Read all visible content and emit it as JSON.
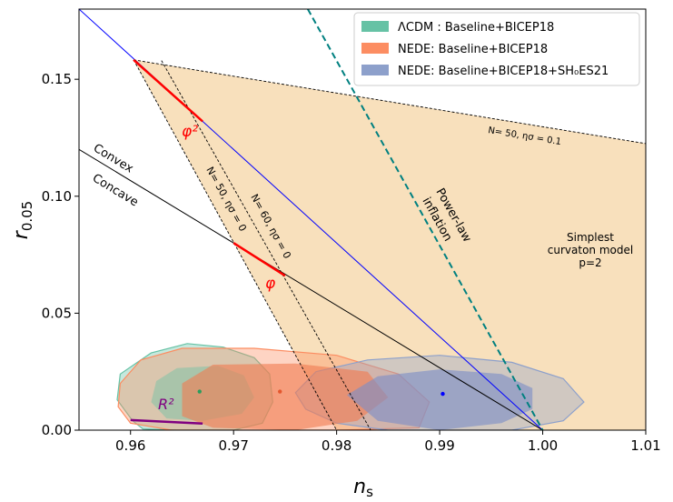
{
  "chart_data": {
    "type": "scatter",
    "xlabel": "n_s",
    "ylabel": "r_0.05",
    "xlim": [
      0.955,
      1.01
    ],
    "ylim": [
      0.0,
      0.18
    ],
    "x_ticks": [
      "0.96",
      "0.97",
      "0.98",
      "0.99",
      "1.00",
      "1.01"
    ],
    "y_ticks": [
      "0.00",
      "0.05",
      "0.10",
      "0.15"
    ],
    "legend_position": "top-right",
    "legend": [
      {
        "label": "ΛCDM : Baseline+BICEP18",
        "color": "#66c2a5"
      },
      {
        "label": "NEDE: Baseline+BICEP18",
        "color": "#fc8d62"
      },
      {
        "label": "NEDE: Baseline+BICEP18+SH₀ES21",
        "color": "#8da0cb"
      }
    ],
    "series": [
      {
        "name": "ΛCDM : Baseline+BICEP18",
        "color": "#66c2a5",
        "best_fit": [
          0.9667,
          0.0165
        ],
        "contour_95": [
          [
            0.9602,
            0.004
          ],
          [
            0.9612,
            0.0005
          ],
          [
            0.9645,
            0.0
          ],
          [
            0.97,
            0.0
          ],
          [
            0.9728,
            0.003
          ],
          [
            0.9738,
            0.012
          ],
          [
            0.9735,
            0.024
          ],
          [
            0.972,
            0.031
          ],
          [
            0.969,
            0.0355
          ],
          [
            0.9655,
            0.037
          ],
          [
            0.962,
            0.033
          ],
          [
            0.959,
            0.024
          ],
          [
            0.9587,
            0.013
          ]
        ],
        "contour_68": [
          [
            0.9635,
            0.005
          ],
          [
            0.967,
            0.004
          ],
          [
            0.9708,
            0.007
          ],
          [
            0.972,
            0.014
          ],
          [
            0.971,
            0.0235
          ],
          [
            0.9685,
            0.0275
          ],
          [
            0.9645,
            0.0265
          ],
          [
            0.9625,
            0.021
          ],
          [
            0.962,
            0.012
          ]
        ]
      },
      {
        "name": "NEDE: Baseline+BICEP18",
        "color": "#fc8d62",
        "best_fit": [
          0.9745,
          0.0165
        ],
        "contour_95": [
          [
            0.9588,
            0.01
          ],
          [
            0.96,
            0.003
          ],
          [
            0.964,
            0.0
          ],
          [
            0.98,
            0.0
          ],
          [
            0.988,
            0.001
          ],
          [
            0.989,
            0.012
          ],
          [
            0.986,
            0.024
          ],
          [
            0.98,
            0.032
          ],
          [
            0.972,
            0.035
          ],
          [
            0.965,
            0.035
          ],
          [
            0.961,
            0.03
          ],
          [
            0.959,
            0.02
          ]
        ],
        "contour_68": [
          [
            0.965,
            0.006
          ],
          [
            0.968,
            0.001
          ],
          [
            0.976,
            0.0
          ],
          [
            0.982,
            0.004
          ],
          [
            0.985,
            0.014
          ],
          [
            0.983,
            0.025
          ],
          [
            0.976,
            0.0285
          ],
          [
            0.968,
            0.028
          ],
          [
            0.965,
            0.02
          ]
        ]
      },
      {
        "name": "NEDE: Baseline+BICEP18+SH₀ES21",
        "color": "#8da0cb",
        "best_fit": [
          0.9903,
          0.0155
        ],
        "contour_95": [
          [
            0.976,
            0.016
          ],
          [
            0.977,
            0.009
          ],
          [
            0.98,
            0.003
          ],
          [
            0.985,
            0.0
          ],
          [
            0.997,
            0.0
          ],
          [
            1.002,
            0.004
          ],
          [
            1.004,
            0.012
          ],
          [
            1.002,
            0.022
          ],
          [
            0.997,
            0.029
          ],
          [
            0.99,
            0.032
          ],
          [
            0.983,
            0.03
          ],
          [
            0.978,
            0.025
          ]
        ],
        "contour_68": [
          [
            0.981,
            0.015
          ],
          [
            0.984,
            0.004
          ],
          [
            0.99,
            0.0
          ],
          [
            0.996,
            0.003
          ],
          [
            0.999,
            0.009
          ],
          [
            0.999,
            0.018
          ],
          [
            0.996,
            0.024
          ],
          [
            0.99,
            0.026
          ],
          [
            0.984,
            0.023
          ]
        ]
      }
    ],
    "lines": [
      {
        "label": "blue-line",
        "color": "#0000ff",
        "points": [
          [
            0.955,
            0.18
          ],
          [
            1.0,
            0.0
          ]
        ]
      },
      {
        "label": "Convex / Concave boundary",
        "color": "#000000",
        "points": [
          [
            0.955,
            0.12
          ],
          [
            1.0,
            0.0
          ]
        ]
      },
      {
        "label": "Power-law inflation",
        "color": "#008080",
        "dashed": true,
        "points": [
          [
            0.9772,
            0.18
          ],
          [
            1.0,
            0.0
          ]
        ]
      },
      {
        "label": "N= 50, ησ = 0",
        "color": "#000000",
        "dotted": true,
        "points": [
          [
            0.9603,
            0.1583
          ],
          [
            0.98,
            0.0
          ]
        ]
      },
      {
        "label": "N= 60, ησ = 0",
        "color": "#000000",
        "dotted": true,
        "points": [
          [
            0.963,
            0.158
          ],
          [
            0.9833,
            0.0
          ]
        ]
      },
      {
        "label": "N= 50, ησ = 0.1",
        "color": "#000000",
        "dotted": true,
        "points": [
          [
            0.9603,
            0.1583
          ],
          [
            1.01,
            0.1225
          ]
        ]
      },
      {
        "label": "φ² model",
        "color": "#ff0000",
        "points": [
          [
            0.9603,
            0.1583
          ],
          [
            0.967,
            0.132
          ]
        ]
      },
      {
        "label": "φ model",
        "color": "#ff0000",
        "points": [
          [
            0.97,
            0.08
          ],
          [
            0.975,
            0.066
          ]
        ]
      },
      {
        "label": "R² model",
        "color": "#800080",
        "points": [
          [
            0.96,
            0.0043
          ],
          [
            0.967,
            0.0028
          ]
        ]
      }
    ],
    "region": {
      "label": "Simplest curvaton model p=2",
      "color": "#f8e0bc",
      "polygon": [
        [
          0.9603,
          0.1583
        ],
        [
          1.01,
          0.1225
        ],
        [
          1.01,
          0.0
        ],
        [
          0.98,
          0.0
        ]
      ]
    },
    "annotations": {
      "convex": "Convex",
      "concave": "Concave",
      "power_law_1": "Power-law",
      "power_law_2": "inflation",
      "n50": "N= 50,  ησ = 0",
      "n60": "N= 60,  ησ = 0",
      "n50_01": "N= 50,  ησ = 0.1",
      "curvaton_1": "Simplest",
      "curvaton_2": "curvaton model",
      "curvaton_3": "p=2",
      "phi2": "φ²",
      "phi": "φ",
      "r2": "R²"
    }
  }
}
